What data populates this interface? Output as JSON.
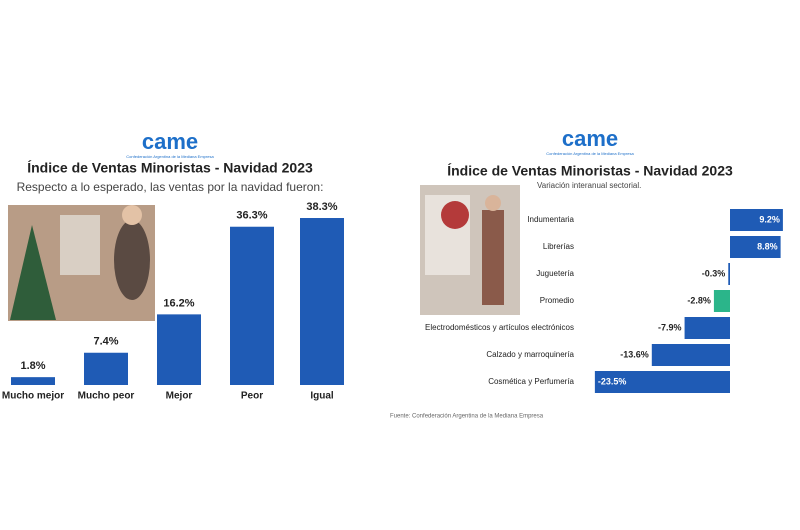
{
  "chart_data": [
    {
      "type": "bar",
      "logo": "came",
      "logo_subtitle": "Confederación Argentina de la Mediana Empresa",
      "title": "Índice de Ventas Minoristas - Navidad 2023",
      "subtitle": "Respecto a lo esperado, las ventas por la navidad fueron:",
      "categories": [
        "Mucho mejor",
        "Mucho peor",
        "Mejor",
        "Peor",
        "Igual"
      ],
      "values": [
        1.8,
        7.4,
        16.2,
        36.3,
        38.3
      ],
      "value_labels": [
        "1.8%",
        "7.4%",
        "16.2%",
        "36.3%",
        "38.3%"
      ],
      "color": "#1f5bb5"
    },
    {
      "type": "bar",
      "orientation": "horizontal",
      "logo": "came",
      "logo_subtitle": "Confederación Argentina de la Mediana Empresa",
      "title": "Índice de Ventas Minoristas - Navidad 2023",
      "subtitle": "Variación interanual sectorial.",
      "categories": [
        "Indumentaria",
        "Librerías",
        "Juguetería",
        "Promedio",
        "Electrodomésticos y artículos electrónicos",
        "Calzado y marroquinería",
        "Cosmética y Perfumería"
      ],
      "values": [
        9.2,
        8.8,
        -0.3,
        -2.8,
        -7.9,
        -13.6,
        -23.5
      ],
      "value_labels": [
        "9.2%",
        "8.8%",
        "-0.3%",
        "-2.8%",
        "-7.9%",
        "-13.6%",
        "-23.5%"
      ],
      "colors": [
        "#1f5bb5",
        "#1f5bb5",
        "#1f5bb5",
        "#2bb58a",
        "#1f5bb5",
        "#1f5bb5",
        "#1f5bb5"
      ],
      "source": "Fuente: Confederación Argentina de la Mediana Empresa"
    }
  ]
}
